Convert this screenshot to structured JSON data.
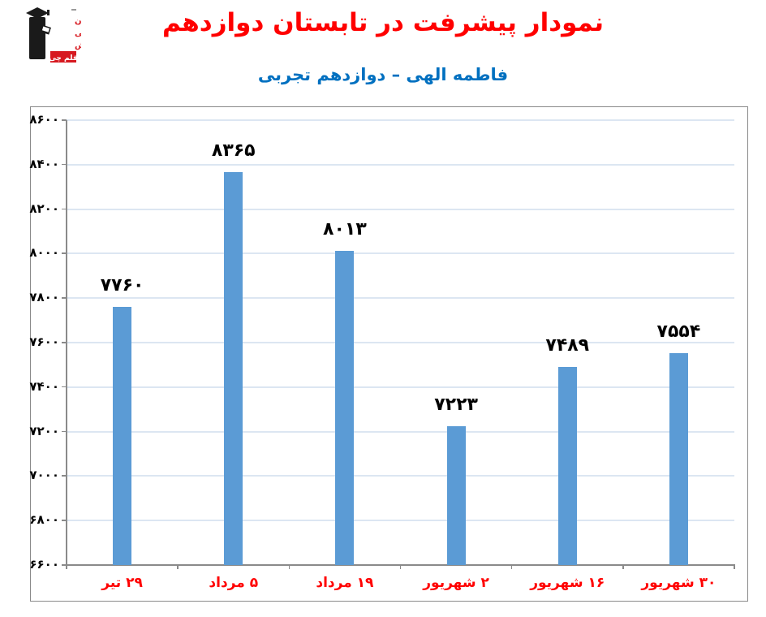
{
  "logo": {
    "org_lines": [
      "کانون",
      "فرهنگی",
      "آموزش"
    ],
    "badge_text": "قلم چی",
    "badge_color": "#d71920",
    "figure_color": "#1a1a1a"
  },
  "header": {
    "title": "نمودار پیشرفت در تابستان دوازدهم",
    "title_color": "#ff0000",
    "subtitle": "فاطمه الهی – دوازدهم تجربی",
    "subtitle_color": "#0070c0"
  },
  "chart_data": {
    "type": "bar",
    "title": "نمودار پیشرفت در تابستان دوازدهم",
    "subtitle": "فاطمه الهی – دوازدهم تجربی",
    "xlabel": "",
    "ylabel": "",
    "categories": [
      "۲۹ تیر",
      "۵ مرداد",
      "۱۹ مرداد",
      "۲ شهریور",
      "۱۶ شهریور",
      "۳۰ شهریور"
    ],
    "values": [
      7760,
      8365,
      8013,
      7223,
      7489,
      7554
    ],
    "value_labels": [
      "۷۷۶۰",
      "۸۳۶۵",
      "۸۰۱۳",
      "۷۲۲۳",
      "۷۴۸۹",
      "۷۵۵۴"
    ],
    "ylim": [
      6600,
      8600
    ],
    "y_tick_step": 200,
    "y_ticks": [
      6600,
      6800,
      7000,
      7200,
      7400,
      7600,
      7800,
      8000,
      8200,
      8400,
      8600
    ],
    "y_tick_labels": [
      "۶۶۰۰",
      "۶۸۰۰",
      "۷۰۰۰",
      "۷۲۰۰",
      "۷۴۰۰",
      "۷۶۰۰",
      "۷۸۰۰",
      "۸۰۰۰",
      "۸۲۰۰",
      "۸۴۰۰",
      "۸۶۰۰"
    ],
    "grid": true,
    "legend": "none",
    "bar_color": "#5b9bd5",
    "gridline_color": "#dce6f2",
    "axis_color": "#8a8a8a",
    "value_label_color": "#000000",
    "y_label_color": "#000000",
    "category_label_color": "#ff0000"
  }
}
